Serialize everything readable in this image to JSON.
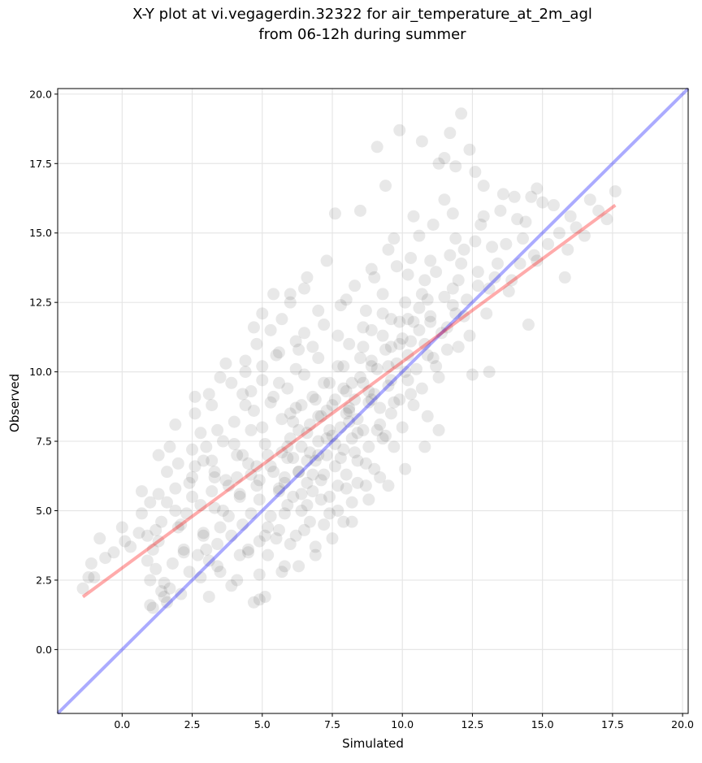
{
  "chart_data": {
    "type": "scatter",
    "title": [
      "X-Y plot at vi.vegagerdin.32322 for air_temperature_at_2m_agl",
      "from 06-12h during summer"
    ],
    "xlabel": "Simulated",
    "ylabel": "Observed",
    "xlim": [
      -2.3,
      20.2
    ],
    "ylim": [
      -2.3,
      20.2
    ],
    "xticks": [
      0.0,
      2.5,
      5.0,
      7.5,
      10.0,
      12.5,
      15.0,
      17.5,
      20.0
    ],
    "yticks": [
      0.0,
      2.5,
      5.0,
      7.5,
      10.0,
      12.5,
      15.0,
      17.5,
      20.0
    ],
    "xtick_labels": [
      "0.0",
      "2.5",
      "5.0",
      "7.5",
      "10.0",
      "12.5",
      "15.0",
      "17.5",
      "20.0"
    ],
    "ytick_labels": [
      "0.0",
      "2.5",
      "5.0",
      "7.5",
      "10.0",
      "12.5",
      "15.0",
      "17.5",
      "20.0"
    ],
    "grid": true,
    "point_color": "#000000",
    "point_opacity": 0.09,
    "identity_line": {
      "x": [
        -2.3,
        20.2
      ],
      "y": [
        -2.3,
        20.2
      ],
      "color": "#0000ff"
    },
    "fit_line": {
      "x": [
        -1.4,
        17.6
      ],
      "y": [
        1.9,
        16.0
      ],
      "color": "#ff0000"
    },
    "points": [
      [
        -1.4,
        2.2
      ],
      [
        -1.2,
        2.6
      ],
      [
        -1.1,
        3.1
      ],
      [
        -0.8,
        4.0
      ],
      [
        -0.6,
        3.3
      ],
      [
        0.1,
        3.9
      ],
      [
        0.0,
        4.4
      ],
      [
        0.7,
        4.9
      ],
      [
        0.7,
        5.7
      ],
      [
        1.0,
        5.3
      ],
      [
        0.9,
        4.1
      ],
      [
        0.9,
        3.2
      ],
      [
        1.1,
        3.6
      ],
      [
        1.0,
        2.5
      ],
      [
        1.1,
        1.5
      ],
      [
        1.2,
        2.9
      ],
      [
        1.4,
        2.1
      ],
      [
        1.5,
        1.9
      ],
      [
        1.6,
        1.7
      ],
      [
        1.5,
        2.4
      ],
      [
        1.3,
        3.9
      ],
      [
        1.4,
        4.6
      ],
      [
        1.6,
        5.3
      ],
      [
        1.6,
        6.4
      ],
      [
        1.7,
        7.3
      ],
      [
        1.3,
        7.0
      ],
      [
        1.3,
        5.6
      ],
      [
        1.9,
        5.8
      ],
      [
        1.9,
        8.1
      ],
      [
        2.0,
        6.7
      ],
      [
        2.1,
        4.5
      ],
      [
        2.2,
        3.5
      ],
      [
        2.3,
        4.9
      ],
      [
        2.5,
        5.5
      ],
      [
        2.4,
        6.0
      ],
      [
        2.5,
        7.2
      ],
      [
        2.6,
        8.5
      ],
      [
        2.6,
        9.1
      ],
      [
        2.8,
        7.8
      ],
      [
        2.9,
        6.8
      ],
      [
        2.9,
        4.2
      ],
      [
        3.0,
        3.6
      ],
      [
        2.8,
        2.6
      ],
      [
        3.1,
        1.9
      ],
      [
        3.1,
        9.2
      ],
      [
        3.2,
        8.8
      ],
      [
        3.3,
        6.4
      ],
      [
        3.3,
        5.1
      ],
      [
        3.4,
        3.8
      ],
      [
        3.5,
        4.4
      ],
      [
        3.6,
        7.5
      ],
      [
        3.5,
        9.8
      ],
      [
        3.7,
        10.3
      ],
      [
        3.8,
        5.9
      ],
      [
        3.9,
        4.1
      ],
      [
        3.9,
        2.3
      ],
      [
        4.0,
        8.2
      ],
      [
        4.1,
        7.0
      ],
      [
        4.2,
        5.6
      ],
      [
        4.3,
        4.5
      ],
      [
        4.3,
        9.2
      ],
      [
        4.4,
        10.4
      ],
      [
        4.5,
        6.7
      ],
      [
        4.5,
        3.6
      ],
      [
        4.6,
        4.9
      ],
      [
        4.6,
        7.9
      ],
      [
        4.7,
        11.6
      ],
      [
        4.8,
        11.0
      ],
      [
        4.7,
        8.6
      ],
      [
        4.7,
        1.7
      ],
      [
        4.9,
        5.4
      ],
      [
        4.9,
        6.1
      ],
      [
        4.9,
        2.7
      ],
      [
        5.0,
        9.7
      ],
      [
        5.0,
        12.1
      ],
      [
        5.1,
        7.4
      ],
      [
        5.1,
        1.9
      ],
      [
        5.2,
        3.4
      ],
      [
        5.3,
        4.8
      ],
      [
        5.3,
        6.6
      ],
      [
        5.3,
        8.9
      ],
      [
        5.4,
        12.8
      ],
      [
        5.5,
        10.6
      ],
      [
        5.6,
        5.8
      ],
      [
        5.6,
        4.3
      ],
      [
        5.7,
        7.1
      ],
      [
        5.7,
        8.3
      ],
      [
        5.7,
        11.9
      ],
      [
        5.8,
        3.0
      ],
      [
        5.8,
        6.2
      ],
      [
        5.9,
        5.2
      ],
      [
        5.9,
        9.4
      ],
      [
        6.0,
        12.5
      ],
      [
        6.0,
        7.6
      ],
      [
        6.1,
        6.9
      ],
      [
        6.1,
        5.5
      ],
      [
        6.2,
        4.1
      ],
      [
        6.2,
        8.7
      ],
      [
        6.3,
        10.8
      ],
      [
        6.3,
        6.4
      ],
      [
        6.4,
        7.3
      ],
      [
        6.4,
        5.0
      ],
      [
        6.5,
        9.9
      ],
      [
        6.5,
        13.0
      ],
      [
        6.5,
        11.4
      ],
      [
        6.6,
        6.0
      ],
      [
        6.6,
        7.8
      ],
      [
        6.7,
        4.6
      ],
      [
        6.7,
        8.1
      ],
      [
        6.8,
        5.7
      ],
      [
        6.8,
        9.1
      ],
      [
        6.9,
        6.8
      ],
      [
        6.9,
        3.7
      ],
      [
        7.0,
        7.5
      ],
      [
        7.0,
        10.5
      ],
      [
        7.1,
        8.4
      ],
      [
        7.1,
        5.4
      ],
      [
        7.2,
        6.3
      ],
      [
        7.2,
        11.7
      ],
      [
        7.3,
        7.0
      ],
      [
        7.3,
        14.0
      ],
      [
        7.4,
        9.6
      ],
      [
        7.4,
        4.9
      ],
      [
        7.5,
        7.7
      ],
      [
        7.5,
        8.8
      ],
      [
        7.6,
        6.6
      ],
      [
        7.6,
        15.7
      ],
      [
        7.7,
        10.2
      ],
      [
        7.7,
        5.9
      ],
      [
        7.8,
        8.0
      ],
      [
        7.8,
        12.4
      ],
      [
        7.9,
        7.2
      ],
      [
        7.9,
        4.6
      ],
      [
        8.0,
        9.3
      ],
      [
        8.0,
        6.3
      ],
      [
        8.1,
        8.6
      ],
      [
        8.1,
        11.0
      ],
      [
        8.2,
        7.6
      ],
      [
        8.2,
        5.3
      ],
      [
        8.3,
        9.0
      ],
      [
        8.3,
        13.1
      ],
      [
        8.4,
        8.3
      ],
      [
        8.4,
        6.8
      ],
      [
        8.5,
        10.5
      ],
      [
        8.5,
        15.8
      ],
      [
        8.6,
        7.9
      ],
      [
        8.6,
        9.6
      ],
      [
        8.7,
        5.9
      ],
      [
        8.7,
        12.2
      ],
      [
        8.8,
        8.9
      ],
      [
        8.8,
        7.3
      ],
      [
        8.9,
        11.5
      ],
      [
        8.9,
        13.7
      ],
      [
        9.0,
        9.2
      ],
      [
        9.0,
        6.5
      ],
      [
        9.1,
        10.1
      ],
      [
        9.1,
        18.1
      ],
      [
        9.2,
        8.1
      ],
      [
        9.3,
        12.8
      ],
      [
        9.3,
        7.6
      ],
      [
        9.4,
        10.8
      ],
      [
        9.4,
        16.7
      ],
      [
        9.5,
        9.5
      ],
      [
        9.5,
        14.4
      ],
      [
        9.6,
        8.5
      ],
      [
        9.6,
        11.9
      ],
      [
        9.7,
        7.3
      ],
      [
        9.8,
        10.3
      ],
      [
        9.8,
        13.8
      ],
      [
        9.9,
        18.7
      ],
      [
        9.9,
        9.0
      ],
      [
        10.0,
        11.2
      ],
      [
        10.0,
        8.0
      ],
      [
        10.1,
        12.5
      ],
      [
        10.2,
        10.6
      ],
      [
        10.2,
        9.7
      ],
      [
        10.3,
        14.1
      ],
      [
        10.4,
        11.8
      ],
      [
        10.4,
        8.8
      ],
      [
        10.5,
        10.1
      ],
      [
        10.6,
        14.9
      ],
      [
        10.6,
        12.3
      ],
      [
        10.7,
        9.4
      ],
      [
        10.7,
        18.3
      ],
      [
        10.8,
        11.0
      ],
      [
        10.8,
        13.3
      ],
      [
        10.9,
        8.4
      ],
      [
        11.0,
        12.0
      ],
      [
        11.1,
        10.5
      ],
      [
        11.1,
        15.3
      ],
      [
        11.2,
        13.6
      ],
      [
        11.3,
        17.5
      ],
      [
        11.3,
        9.8
      ],
      [
        11.4,
        11.4
      ],
      [
        11.5,
        17.7
      ],
      [
        11.5,
        12.7
      ],
      [
        11.6,
        10.8
      ],
      [
        11.7,
        18.6
      ],
      [
        11.7,
        14.2
      ],
      [
        11.8,
        15.7
      ],
      [
        11.9,
        17.4
      ],
      [
        11.9,
        12.1
      ],
      [
        12.0,
        10.9
      ],
      [
        12.1,
        19.3
      ],
      [
        12.1,
        13.9
      ],
      [
        12.2,
        14.4
      ],
      [
        12.3,
        12.6
      ],
      [
        12.4,
        18.0
      ],
      [
        12.4,
        11.3
      ],
      [
        12.5,
        9.9
      ],
      [
        12.6,
        14.7
      ],
      [
        12.7,
        13.1
      ],
      [
        12.8,
        15.3
      ],
      [
        12.9,
        16.7
      ],
      [
        13.0,
        12.1
      ],
      [
        13.1,
        10.0
      ],
      [
        13.2,
        14.5
      ],
      [
        13.3,
        13.4
      ],
      [
        13.5,
        15.8
      ],
      [
        13.7,
        14.6
      ],
      [
        13.8,
        12.9
      ],
      [
        14.0,
        16.3
      ],
      [
        14.2,
        13.9
      ],
      [
        14.4,
        15.4
      ],
      [
        14.5,
        11.7
      ],
      [
        14.6,
        16.3
      ],
      [
        14.7,
        14.2
      ],
      [
        15.0,
        16.1
      ],
      [
        15.2,
        14.6
      ],
      [
        15.4,
        16.0
      ],
      [
        15.6,
        15.0
      ],
      [
        15.8,
        13.4
      ],
      [
        16.0,
        15.6
      ],
      [
        16.5,
        14.9
      ],
      [
        17.0,
        15.8
      ],
      [
        17.6,
        16.5
      ],
      [
        16.2,
        15.2
      ],
      [
        15.9,
        14.4
      ],
      [
        13.9,
        13.3
      ],
      [
        14.1,
        15.5
      ],
      [
        12.7,
        13.6
      ],
      [
        11.6,
        11.6
      ],
      [
        10.9,
        10.6
      ],
      [
        8.9,
        9.0
      ],
      [
        9.6,
        9.7
      ],
      [
        8.1,
        8.2
      ],
      [
        7.0,
        7.0
      ],
      [
        6.3,
        6.4
      ],
      [
        5.6,
        5.7
      ],
      [
        6.8,
        6.3
      ],
      [
        7.6,
        7.4
      ],
      [
        8.4,
        7.8
      ],
      [
        9.2,
        8.7
      ],
      [
        10.1,
        10.0
      ],
      [
        5.9,
        6.9
      ],
      [
        4.8,
        5.9
      ],
      [
        4.1,
        6.2
      ],
      [
        3.6,
        5.0
      ],
      [
        2.9,
        4.1
      ],
      [
        2.2,
        3.6
      ],
      [
        3.4,
        7.9
      ],
      [
        4.6,
        9.3
      ],
      [
        5.4,
        9.1
      ],
      [
        6.1,
        8.2
      ],
      [
        7.3,
        8.6
      ],
      [
        8.5,
        9.8
      ],
      [
        9.9,
        11.0
      ],
      [
        10.7,
        12.8
      ],
      [
        11.8,
        13.0
      ],
      [
        12.2,
        12.0
      ],
      [
        13.4,
        13.9
      ],
      [
        14.8,
        14.0
      ],
      [
        6.4,
        5.6
      ],
      [
        7.1,
        6.1
      ],
      [
        7.8,
        6.9
      ],
      [
        8.3,
        7.1
      ],
      [
        9.1,
        7.9
      ],
      [
        9.7,
        8.9
      ],
      [
        10.3,
        9.2
      ],
      [
        11.2,
        10.2
      ],
      [
        5.2,
        4.4
      ],
      [
        5.8,
        4.9
      ],
      [
        6.6,
        5.2
      ],
      [
        7.4,
        5.5
      ],
      [
        8.0,
        5.8
      ],
      [
        8.7,
        6.7
      ],
      [
        9.4,
        7.7
      ],
      [
        4.2,
        3.4
      ],
      [
        4.9,
        3.9
      ],
      [
        5.5,
        4.0
      ],
      [
        6.0,
        3.8
      ],
      [
        7.2,
        4.5
      ],
      [
        3.1,
        3.2
      ],
      [
        3.8,
        4.8
      ],
      [
        2.4,
        2.8
      ],
      [
        1.8,
        3.1
      ],
      [
        2.6,
        6.6
      ],
      [
        3.0,
        7.3
      ],
      [
        4.4,
        8.8
      ],
      [
        5.0,
        10.2
      ],
      [
        5.6,
        10.7
      ],
      [
        6.2,
        11.1
      ],
      [
        6.8,
        10.9
      ],
      [
        7.7,
        11.3
      ],
      [
        8.6,
        11.6
      ],
      [
        9.3,
        12.1
      ],
      [
        10.2,
        13.5
      ],
      [
        11.0,
        14.0
      ],
      [
        11.9,
        14.8
      ],
      [
        12.9,
        15.6
      ],
      [
        13.6,
        16.4
      ],
      [
        6.0,
        12.8
      ],
      [
        5.3,
        11.5
      ],
      [
        4.4,
        10.0
      ],
      [
        3.9,
        9.6
      ],
      [
        8.0,
        12.6
      ],
      [
        9.0,
        13.4
      ],
      [
        7.0,
        12.2
      ],
      [
        6.6,
        13.4
      ],
      [
        10.4,
        15.6
      ],
      [
        9.7,
        14.8
      ],
      [
        11.5,
        16.2
      ],
      [
        12.6,
        17.2
      ],
      [
        14.8,
        16.6
      ],
      [
        16.7,
        16.2
      ],
      [
        17.3,
        15.5
      ],
      [
        14.3,
        14.8
      ],
      [
        13.1,
        13.0
      ],
      [
        12.0,
        13.3
      ],
      [
        10.6,
        11.5
      ],
      [
        8.9,
        10.4
      ],
      [
        7.9,
        9.4
      ],
      [
        6.9,
        9.0
      ],
      [
        6.0,
        8.5
      ],
      [
        5.0,
        8.0
      ],
      [
        4.0,
        7.4
      ],
      [
        3.2,
        6.8
      ],
      [
        2.5,
        6.2
      ],
      [
        1.9,
        5.0
      ],
      [
        1.2,
        4.3
      ],
      [
        0.6,
        4.2
      ],
      [
        0.3,
        3.7
      ],
      [
        -0.3,
        3.5
      ],
      [
        -1.0,
        2.6
      ],
      [
        1.7,
        2.2
      ],
      [
        2.1,
        2.0
      ],
      [
        1.0,
        1.6
      ],
      [
        3.5,
        2.8
      ],
      [
        4.1,
        2.5
      ],
      [
        4.9,
        1.8
      ],
      [
        5.7,
        2.8
      ],
      [
        6.3,
        3.0
      ],
      [
        6.9,
        3.4
      ],
      [
        7.5,
        4.0
      ],
      [
        8.2,
        4.6
      ],
      [
        8.8,
        5.4
      ],
      [
        9.5,
        5.9
      ],
      [
        10.1,
        6.5
      ],
      [
        10.8,
        7.3
      ],
      [
        11.3,
        7.9
      ],
      [
        9.2,
        6.2
      ],
      [
        8.4,
        6.0
      ],
      [
        7.7,
        5.0
      ],
      [
        6.5,
        4.3
      ],
      [
        5.1,
        4.1
      ],
      [
        4.5,
        3.5
      ],
      [
        3.4,
        3.0
      ],
      [
        2.7,
        3.4
      ],
      [
        5.8,
        6.0
      ],
      [
        6.6,
        6.8
      ],
      [
        7.3,
        7.6
      ],
      [
        8.0,
        8.5
      ],
      [
        8.8,
        9.3
      ],
      [
        9.5,
        10.2
      ],
      [
        10.3,
        11.1
      ],
      [
        11.0,
        11.8
      ],
      [
        11.8,
        12.4
      ],
      [
        5.4,
        6.4
      ],
      [
        4.8,
        6.6
      ],
      [
        4.2,
        5.5
      ],
      [
        3.7,
        6.1
      ],
      [
        3.2,
        5.7
      ],
      [
        2.8,
        5.2
      ],
      [
        2.0,
        4.4
      ],
      [
        6.3,
        7.9
      ],
      [
        7.0,
        8.4
      ],
      [
        7.6,
        9.0
      ],
      [
        8.2,
        9.6
      ],
      [
        8.9,
        10.2
      ],
      [
        9.6,
        10.9
      ],
      [
        10.2,
        11.9
      ],
      [
        10.9,
        12.6
      ],
      [
        6.7,
        7.1
      ],
      [
        7.4,
        7.9
      ],
      [
        8.1,
        8.7
      ],
      [
        5.9,
        7.3
      ],
      [
        5.2,
        7.0
      ],
      [
        4.6,
        6.3
      ],
      [
        6.4,
        8.8
      ],
      [
        7.2,
        9.6
      ],
      [
        7.9,
        10.2
      ],
      [
        8.6,
        10.9
      ],
      [
        9.3,
        11.3
      ],
      [
        9.9,
        11.8
      ],
      [
        5.6,
        9.6
      ],
      [
        6.2,
        10.1
      ],
      [
        4.3,
        7.0
      ],
      [
        3.3,
        6.2
      ]
    ]
  }
}
